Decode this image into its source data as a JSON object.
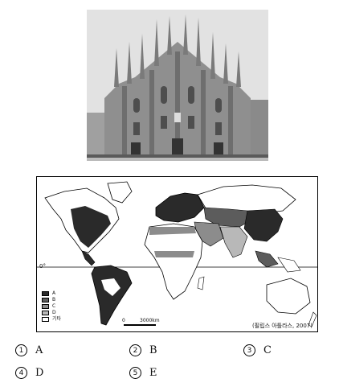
{
  "photo": {
    "icon": "cathedral-photo"
  },
  "map": {
    "equator_label": "0°",
    "legend": [
      {
        "label": "A",
        "color": "#2a2a2a"
      },
      {
        "label": "B",
        "color": "#5c5c5c"
      },
      {
        "label": "C",
        "color": "#8c8c8c"
      },
      {
        "label": "D",
        "color": "#b8b8b8"
      },
      {
        "label": "기타",
        "color": "#ffffff"
      }
    ],
    "scale_zero": "0",
    "scale_distance": "3000km",
    "source": "(필립스 아틀라스, 2007)"
  },
  "choices": [
    {
      "number": "1",
      "text": "A"
    },
    {
      "number": "2",
      "text": "B"
    },
    {
      "number": "3",
      "text": "C"
    },
    {
      "number": "4",
      "text": "D"
    },
    {
      "number": "5",
      "text": "E"
    }
  ]
}
